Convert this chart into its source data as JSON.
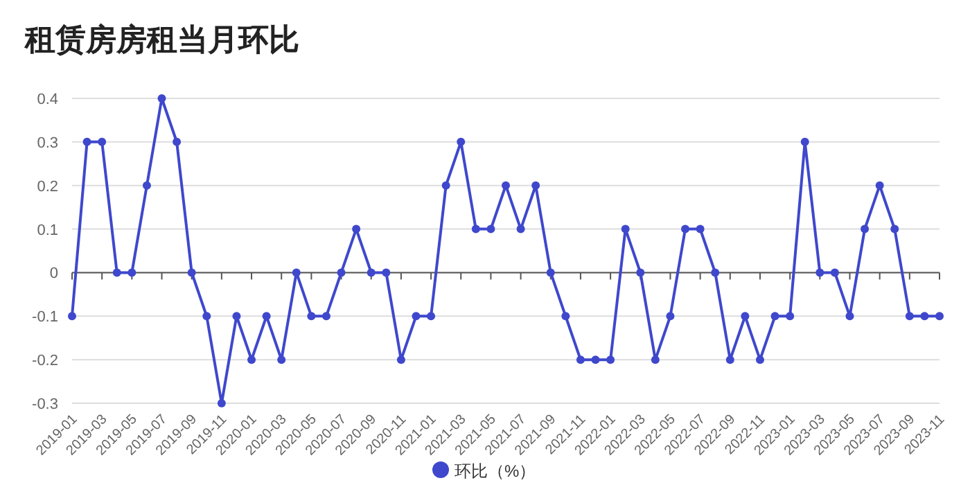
{
  "chart_data": {
    "type": "line",
    "title": "租赁房房租当月环比",
    "categories": [
      "2019-01",
      null,
      "2019-03",
      null,
      "2019-05",
      null,
      "2019-07",
      null,
      "2019-09",
      null,
      "2019-11",
      null,
      "2020-01",
      null,
      "2020-03",
      null,
      "2020-05",
      null,
      "2020-07",
      null,
      "2020-09",
      null,
      "2020-11",
      null,
      "2021-01",
      null,
      "2021-03",
      null,
      "2021-05",
      null,
      "2021-07",
      null,
      "2021-09",
      null,
      "2021-11",
      null,
      "2022-01",
      null,
      "2022-03",
      null,
      "2022-05",
      null,
      "2022-07",
      null,
      "2022-09",
      null,
      "2022-11",
      null,
      "2023-01",
      null,
      "2023-03",
      null,
      "2023-05",
      null,
      "2023-07",
      null,
      "2023-09",
      null,
      "2023-11"
    ],
    "series": [
      {
        "name": "环比（%）",
        "color": "#3f48cc",
        "values": [
          -0.1,
          0.3,
          0.3,
          0,
          0,
          0.2,
          0.4,
          0.3,
          0,
          -0.1,
          -0.3,
          -0.1,
          -0.2,
          -0.1,
          -0.2,
          0,
          -0.1,
          -0.1,
          0,
          0.1,
          0,
          0,
          -0.2,
          -0.1,
          -0.1,
          0.2,
          0.3,
          0.1,
          0.1,
          0.2,
          0.1,
          0.2,
          0,
          -0.1,
          -0.2,
          -0.2,
          -0.2,
          0.1,
          0,
          -0.2,
          -0.1,
          0.1,
          0.1,
          0,
          -0.2,
          -0.1,
          -0.2,
          -0.1,
          -0.1,
          0.3,
          0,
          0,
          -0.1,
          0.1,
          0.2,
          0.1,
          -0.1,
          -0.1,
          -0.1
        ]
      }
    ],
    "ylim": [
      -0.3,
      0.4
    ],
    "yticks": [
      -0.3,
      -0.2,
      -0.1,
      0,
      0.1,
      0.2,
      0.3,
      0.4
    ],
    "grid": "y",
    "legend": "bottom",
    "marker": "circle",
    "line_style": "solid"
  }
}
